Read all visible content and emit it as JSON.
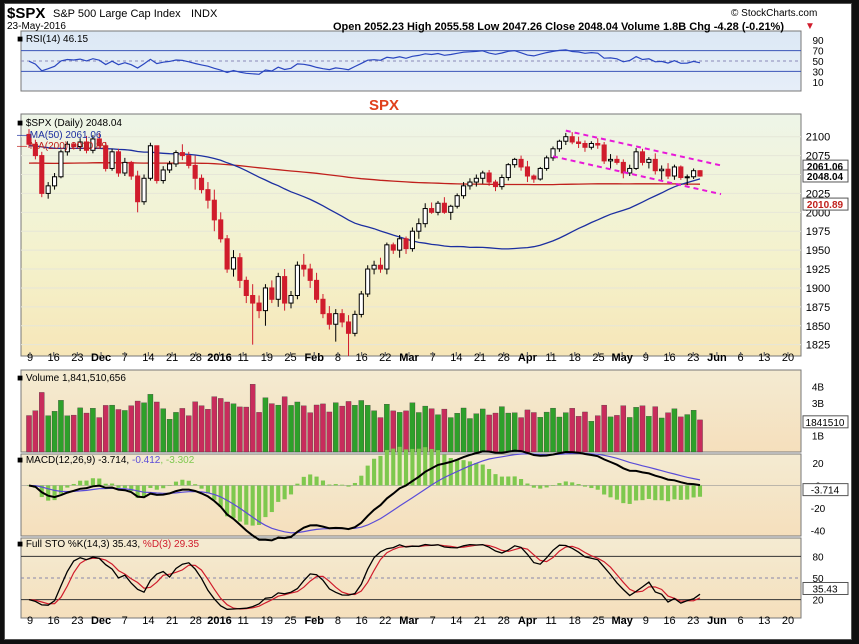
{
  "header": {
    "symbol": "$SPX",
    "name": "S&P 500 Large Cap Index",
    "exchange": "INDX",
    "date": "23-May-2016",
    "copyright": "© StockCharts.com",
    "ohlc": "Open 2052.23  High 2055.58  Low 2047.26  Close 2048.04  Volume 1.8B  Chg -4.28 (-0.21%)"
  },
  "chart_data": {
    "type": "candlestick",
    "ticker": "$SPX",
    "period": "Daily",
    "last": 2048.04,
    "open": 2052.23,
    "high": 2055.58,
    "low": 2047.26,
    "close": 2048.04,
    "volume_label": "1.8B",
    "change": -4.28,
    "change_pct": -0.21,
    "annotation": "SPX",
    "ylim": [
      1810,
      2130
    ],
    "yticks": [
      1825,
      1850,
      1875,
      1900,
      1925,
      1950,
      1975,
      2000,
      2025,
      2050,
      2075,
      2100
    ],
    "ma50": {
      "label": "MA(50) 2061.06",
      "last": 2061.06,
      "color": "#1c2fa0"
    },
    "ma200": {
      "label": "MA(200) 2010.89",
      "last": 2010.89,
      "color": "#c0201c"
    },
    "price_legend": "$SPX (Daily) 2048.04",
    "price_tag": "2048.04",
    "ma50_tag": "2061.06",
    "ma200_tag": "2010.89",
    "x_labels": [
      "9",
      "16",
      "23",
      "Dec",
      "7",
      "14",
      "21",
      "28",
      "2016",
      "11",
      "19",
      "25",
      "Feb",
      "8",
      "16",
      "22",
      "Mar",
      "7",
      "14",
      "21",
      "28",
      "Apr",
      "11",
      "18",
      "25",
      "May",
      "9",
      "16",
      "23",
      "Jun",
      "6",
      "13",
      "20"
    ],
    "rsi": {
      "label": "RSI(14) 46.15",
      "last": 46.15,
      "levels": [
        70,
        30
      ],
      "ticks": [
        90,
        70,
        50,
        30,
        10
      ]
    },
    "volume": {
      "label": "Volume 1,841,510,656",
      "tag": "1841510",
      "ticks": [
        "4B",
        "3B",
        "2B",
        "1B"
      ]
    },
    "macd": {
      "label_main": "MACD(12,26,9) -3.714, ",
      "label_signal": "-0.412",
      "label_hist": ", -3.302",
      "tag": "-3.714",
      "ticks": [
        "20",
        "0",
        "-20",
        "-40"
      ]
    },
    "stochastic": {
      "label_main": "Full STO %K(14,3) 35.43, ",
      "label_d": "%D(3) 29.35",
      "tag": "35.43",
      "ticks": [
        "80",
        "50",
        "20"
      ]
    },
    "ohlc": [
      [
        2103,
        2110,
        2085,
        2090
      ],
      [
        2090,
        2096,
        2070,
        2075
      ],
      [
        2075,
        2080,
        2020,
        2025
      ],
      [
        2025,
        2040,
        2018,
        2035
      ],
      [
        2035,
        2052,
        2030,
        2047
      ],
      [
        2047,
        2083,
        2045,
        2080
      ],
      [
        2080,
        2094,
        2075,
        2090
      ],
      [
        2090,
        2093,
        2083,
        2087
      ],
      [
        2087,
        2098,
        2081,
        2093
      ],
      [
        2093,
        2101,
        2078,
        2082
      ],
      [
        2082,
        2102,
        2078,
        2097
      ],
      [
        2097,
        2105,
        2085,
        2088
      ],
      [
        2088,
        2093,
        2054,
        2058
      ],
      [
        2058,
        2084,
        2055,
        2080
      ],
      [
        2080,
        2084,
        2047,
        2052
      ],
      [
        2052,
        2072,
        2048,
        2066
      ],
      [
        2066,
        2068,
        2043,
        2048
      ],
      [
        2048,
        2055,
        2000,
        2014
      ],
      [
        2014,
        2050,
        2010,
        2045
      ],
      [
        2045,
        2092,
        2042,
        2088
      ],
      [
        2088,
        2088,
        2038,
        2042
      ],
      [
        2042,
        2061,
        2038,
        2056
      ],
      [
        2056,
        2068,
        2052,
        2064
      ],
      [
        2064,
        2082,
        2060,
        2079
      ],
      [
        2079,
        2090,
        2069,
        2075
      ],
      [
        2075,
        2080,
        2058,
        2062
      ],
      [
        2062,
        2075,
        2030,
        2045
      ],
      [
        2045,
        2050,
        2025,
        2030
      ],
      [
        2030,
        2040,
        2005,
        2016
      ],
      [
        2016,
        2030,
        1975,
        1990
      ],
      [
        1990,
        2000,
        1960,
        1965
      ],
      [
        1965,
        1970,
        1920,
        1925
      ],
      [
        1925,
        1950,
        1915,
        1940
      ],
      [
        1940,
        1946,
        1900,
        1910
      ],
      [
        1910,
        1915,
        1880,
        1890
      ],
      [
        1890,
        1905,
        1825,
        1880
      ],
      [
        1880,
        1890,
        1860,
        1870
      ],
      [
        1870,
        1905,
        1850,
        1900
      ],
      [
        1900,
        1910,
        1880,
        1885
      ],
      [
        1885,
        1920,
        1875,
        1915
      ],
      [
        1915,
        1925,
        1870,
        1880
      ],
      [
        1880,
        1896,
        1873,
        1890
      ],
      [
        1890,
        1935,
        1885,
        1930
      ],
      [
        1930,
        1945,
        1915,
        1925
      ],
      [
        1925,
        1932,
        1900,
        1910
      ],
      [
        1910,
        1920,
        1880,
        1885
      ],
      [
        1885,
        1892,
        1860,
        1866
      ],
      [
        1866,
        1876,
        1845,
        1852
      ],
      [
        1852,
        1872,
        1829,
        1866
      ],
      [
        1866,
        1872,
        1848,
        1855
      ],
      [
        1855,
        1864,
        1810,
        1840
      ],
      [
        1840,
        1870,
        1836,
        1865
      ],
      [
        1865,
        1896,
        1861,
        1892
      ],
      [
        1892,
        1930,
        1888,
        1925
      ],
      [
        1925,
        1936,
        1918,
        1930
      ],
      [
        1930,
        1940,
        1920,
        1925
      ],
      [
        1925,
        1960,
        1918,
        1957
      ],
      [
        1957,
        1960,
        1945,
        1950
      ],
      [
        1950,
        1970,
        1940,
        1965
      ],
      [
        1965,
        1968,
        1945,
        1952
      ],
      [
        1952,
        1980,
        1948,
        1975
      ],
      [
        1975,
        1992,
        1965,
        1985
      ],
      [
        1985,
        2012,
        1980,
        2005
      ],
      [
        2005,
        2013,
        1998,
        2000
      ],
      [
        2000,
        2015,
        1996,
        2012
      ],
      [
        2012,
        2020,
        1998,
        2000
      ],
      [
        2000,
        2010,
        1990,
        2008
      ],
      [
        2008,
        2025,
        2005,
        2022
      ],
      [
        2022,
        2040,
        2018,
        2035
      ],
      [
        2035,
        2045,
        2030,
        2040
      ],
      [
        2040,
        2050,
        2034,
        2045
      ],
      [
        2045,
        2055,
        2038,
        2052
      ],
      [
        2052,
        2056,
        2035,
        2040
      ],
      [
        2040,
        2043,
        2028,
        2034
      ],
      [
        2034,
        2050,
        2030,
        2046
      ],
      [
        2046,
        2065,
        2042,
        2063
      ],
      [
        2063,
        2072,
        2059,
        2070
      ],
      [
        2070,
        2075,
        2055,
        2060
      ],
      [
        2060,
        2068,
        2040,
        2048
      ],
      [
        2048,
        2050,
        2039,
        2044
      ],
      [
        2044,
        2060,
        2042,
        2058
      ],
      [
        2058,
        2075,
        2055,
        2072
      ],
      [
        2072,
        2087,
        2068,
        2084
      ],
      [
        2084,
        2096,
        2080,
        2094
      ],
      [
        2094,
        2105,
        2089,
        2100
      ],
      [
        2100,
        2106,
        2090,
        2093
      ],
      [
        2093,
        2100,
        2085,
        2091
      ],
      [
        2091,
        2095,
        2080,
        2086
      ],
      [
        2086,
        2094,
        2083,
        2091
      ],
      [
        2091,
        2098,
        2084,
        2089
      ],
      [
        2089,
        2093,
        2064,
        2068
      ],
      [
        2068,
        2077,
        2058,
        2070
      ],
      [
        2070,
        2075,
        2063,
        2066
      ],
      [
        2066,
        2070,
        2045,
        2052
      ],
      [
        2052,
        2063,
        2048,
        2058
      ],
      [
        2058,
        2085,
        2056,
        2080
      ],
      [
        2080,
        2084,
        2062,
        2066
      ],
      [
        2066,
        2073,
        2058,
        2070
      ],
      [
        2070,
        2078,
        2050,
        2055
      ],
      [
        2055,
        2062,
        2043,
        2057
      ],
      [
        2057,
        2065,
        2044,
        2048
      ],
      [
        2048,
        2063,
        2043,
        2060
      ],
      [
        2060,
        2062,
        2043,
        2046
      ],
      [
        2046,
        2050,
        2036,
        2047
      ],
      [
        2047,
        2058,
        2044,
        2055
      ],
      [
        2055,
        2056,
        2047,
        2048
      ]
    ]
  },
  "colors": {
    "up": "#2ea02a",
    "down": "#d01c2c",
    "channel": "#e818d8",
    "panel_top": "#f6f8e0",
    "panel_bottom": "#f7e4c2",
    "ma50": "#1c2fa0",
    "ma200": "#c0201c",
    "macd_signal": "#5a4cd8",
    "macd_hist": "#7ec84e"
  }
}
